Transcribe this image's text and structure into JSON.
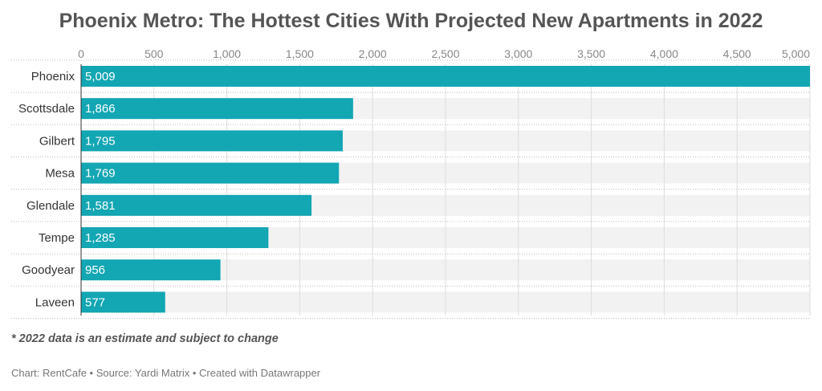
{
  "chart_data": {
    "type": "bar",
    "orientation": "horizontal",
    "title": "Phoenix Metro: The Hottest Cities With Projected New Apartments in 2022",
    "categories": [
      "Phoenix",
      "Scottsdale",
      "Gilbert",
      "Mesa",
      "Glendale",
      "Tempe",
      "Goodyear",
      "Laveen"
    ],
    "values": [
      5009,
      1866,
      1795,
      1769,
      1581,
      1285,
      956,
      577
    ],
    "value_labels": [
      "5,009",
      "1,866",
      "1,795",
      "1,769",
      "1,581",
      "1,285",
      "956",
      "577"
    ],
    "xlim": [
      0,
      5000
    ],
    "xticks": [
      0,
      500,
      1000,
      1500,
      2000,
      2500,
      3000,
      3500,
      4000,
      4500,
      5000
    ],
    "xtick_labels": [
      "0",
      "500",
      "1,000",
      "1,500",
      "2,000",
      "2,500",
      "3,000",
      "3,500",
      "4,000",
      "4,500",
      "5,000"
    ],
    "xaxis_position": "top",
    "grid": true,
    "legend": "none",
    "bar_color": "#13a6b3",
    "track_color": "#f2f2f2",
    "label_color": "#ffffff"
  },
  "footnote": "* 2022 data is an estimate and subject to change",
  "credits": "Chart: RentCafe • Source: Yardi Matrix • Created with Datawrapper"
}
